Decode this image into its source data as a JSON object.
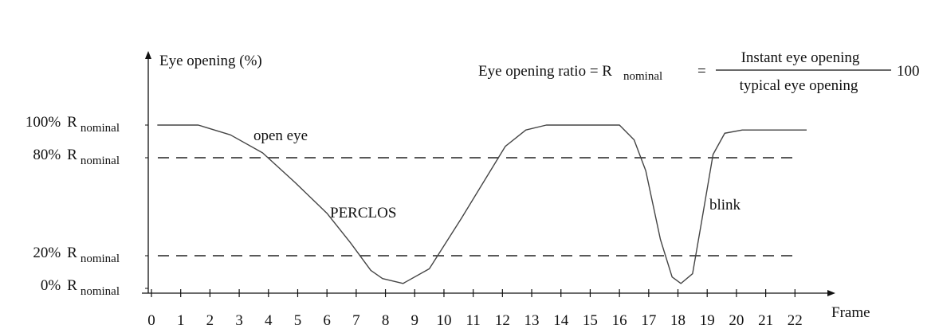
{
  "chart_data": {
    "type": "line",
    "y_label": "Eye opening (%)",
    "x_label": "Frame",
    "formula": {
      "left": "Eye opening ratio = R",
      "left_sub": "nominal",
      "equals": "=",
      "numerator": "Instant eye opening",
      "denominator": "typical eye opening",
      "factor": "100"
    },
    "annotations": [
      "open eye",
      "PERCLOS",
      "blink"
    ],
    "x": [
      0.2,
      1.6,
      2.7,
      3.8,
      4.9,
      6.0,
      6.8,
      7.5,
      7.9,
      8.6,
      9.5,
      10.6,
      12.1,
      12.8,
      13.5,
      16.0,
      16.5,
      16.9,
      17.4,
      17.8,
      18.1,
      18.5,
      18.8,
      19.2,
      19.6,
      20.2,
      22.4
    ],
    "values": [
      100,
      100,
      94,
      83,
      65,
      46,
      28,
      11,
      6,
      3,
      12,
      43,
      87,
      97,
      100,
      100,
      91,
      72,
      30,
      7,
      3,
      9,
      40,
      82,
      95,
      97,
      97
    ],
    "color": "#444444",
    "reference_lines": [
      80,
      20
    ],
    "xlim": [
      0,
      23
    ],
    "xticks": [
      0,
      1,
      2,
      3,
      4,
      5,
      6,
      7,
      8,
      9,
      10,
      11,
      12,
      13,
      14,
      15,
      16,
      17,
      18,
      19,
      20,
      21,
      22
    ],
    "ylim": [
      0,
      100
    ],
    "yticks": [
      {
        "value": 0,
        "label": "0%",
        "suffix": "R",
        "subscript": "nominal"
      },
      {
        "value": 20,
        "label": "20%",
        "suffix": "R",
        "subscript": "nominal"
      },
      {
        "value": 80,
        "label": "80%",
        "suffix": "R",
        "subscript": "nominal"
      },
      {
        "value": 100,
        "label": "100%",
        "suffix": "R",
        "subscript": "nominal"
      }
    ]
  }
}
